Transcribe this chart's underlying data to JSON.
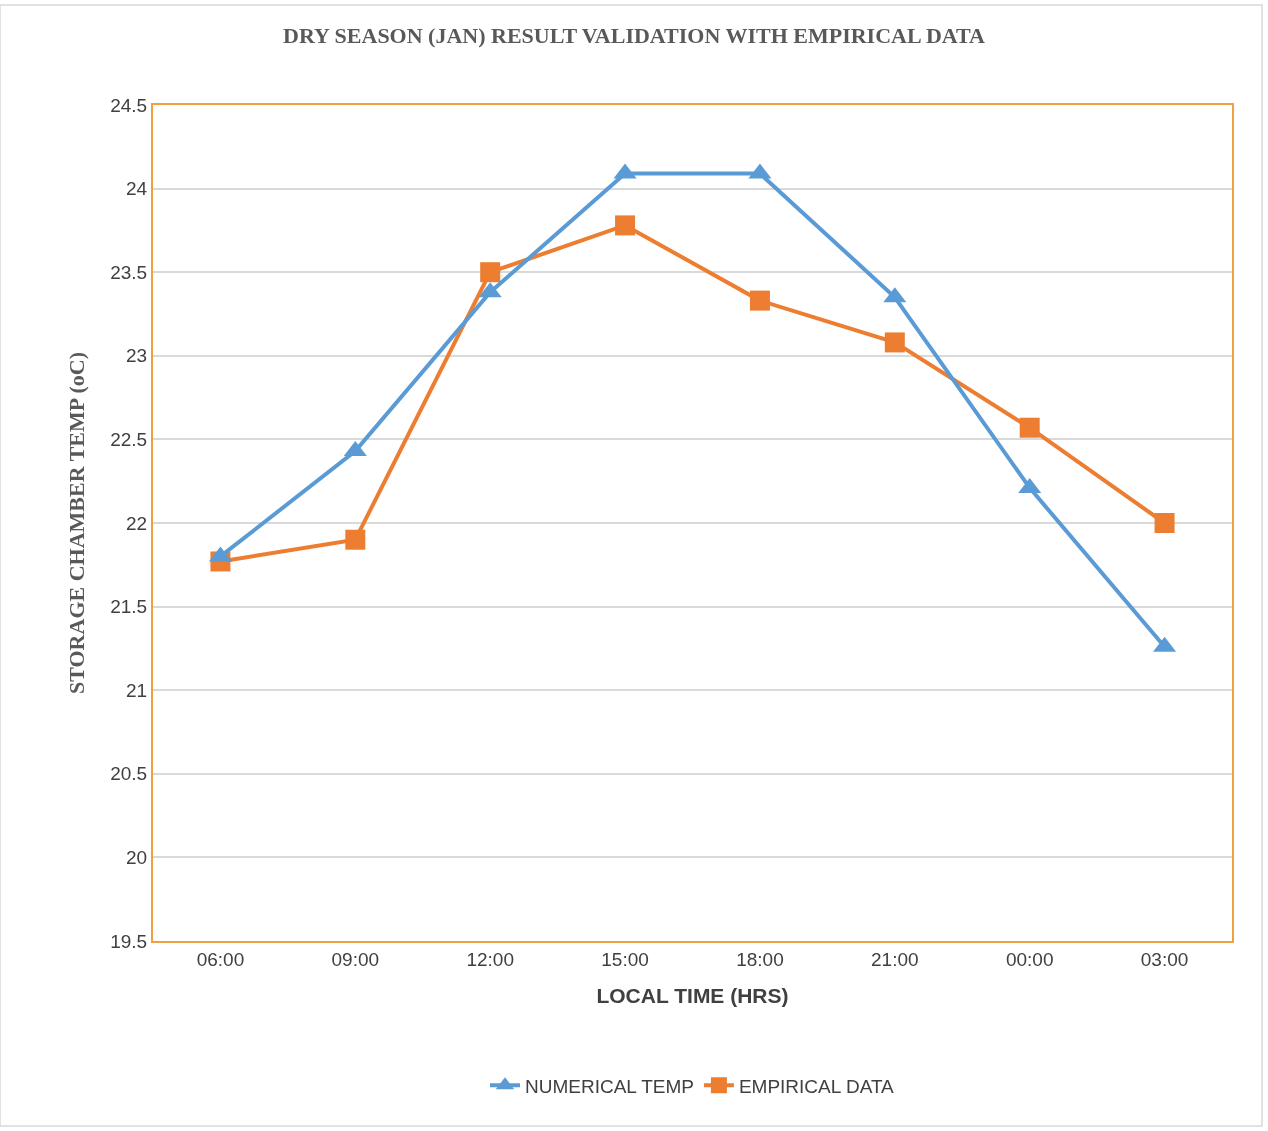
{
  "chart_data": {
    "type": "line",
    "title": "DRY SEASON (JAN) RESULT VALIDATION WITH EMPIRICAL DATA",
    "xlabel": "LOCAL TIME (HRS)",
    "ylabel": "STORAGE CHAMBER TEMP (oC)",
    "categories": [
      "06:00",
      "09:00",
      "12:00",
      "15:00",
      "18:00",
      "21:00",
      "00:00",
      "03:00"
    ],
    "series": [
      {
        "name": "NUMERICAL TEMP",
        "color": "#5b9bd5",
        "marker": "triangle",
        "values": [
          21.8,
          22.43,
          23.38,
          24.09,
          24.09,
          23.35,
          22.21,
          21.26
        ]
      },
      {
        "name": "EMPIRICAL DATA",
        "color": "#ed7d31",
        "marker": "square",
        "values": [
          21.77,
          21.9,
          23.5,
          23.78,
          23.33,
          23.08,
          22.57,
          22.0
        ]
      }
    ],
    "ylim": [
      19.5,
      24.5
    ],
    "yticks": [
      19.5,
      20,
      20.5,
      21,
      21.5,
      22,
      22.5,
      23,
      23.5,
      24,
      24.5
    ],
    "grid": "y",
    "legend": "bottom",
    "line_style": "solid"
  }
}
